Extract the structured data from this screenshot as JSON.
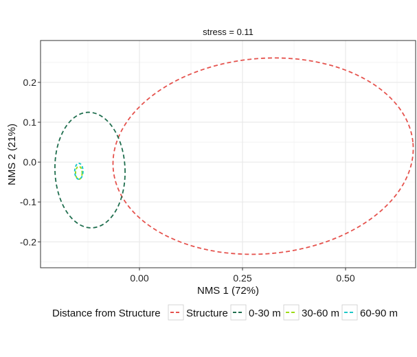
{
  "chart_data": {
    "type": "scatter",
    "subtype": "confidence-ellipses",
    "title": "stress = 0.11",
    "xlabel": "NMS 1 (72%)",
    "ylabel": "NMS 2 (21%)",
    "xlim": [
      -0.24,
      0.67
    ],
    "ylim": [
      -0.265,
      0.305
    ],
    "x_ticks": [
      0.0,
      0.25,
      0.5
    ],
    "x_tick_labels": [
      "0.00",
      "0.25",
      "0.50"
    ],
    "y_ticks": [
      -0.2,
      -0.1,
      0.0,
      0.1,
      0.2
    ],
    "y_tick_labels": [
      "-0.2",
      "-0.1",
      "0.0",
      "0.1",
      "0.2"
    ],
    "grid": true,
    "legend_title": "Distance from Structure",
    "legend_position": "bottom",
    "series": [
      {
        "name": "Structure",
        "color": "#E5524D",
        "ellipse": {
          "center": [
            0.3,
            0.015
          ],
          "axes": [
            0.365,
            0.245
          ],
          "angle_deg": 5
        }
      },
      {
        "name": "0-30 m",
        "color": "#1F6E4E",
        "ellipse": {
          "center": [
            -0.12,
            -0.02
          ],
          "axes": [
            0.085,
            0.145
          ],
          "angle_deg": 2
        }
      },
      {
        "name": "30-60 m",
        "color": "#9CDB14",
        "ellipse": {
          "center": [
            -0.147,
            -0.027
          ],
          "axes": [
            0.008,
            0.016
          ],
          "angle_deg": 0
        }
      },
      {
        "name": "60-90 m",
        "color": "#1CC8C8",
        "ellipse": {
          "center": [
            -0.147,
            -0.023
          ],
          "axes": [
            0.01,
            0.02
          ],
          "angle_deg": 0
        }
      }
    ]
  }
}
